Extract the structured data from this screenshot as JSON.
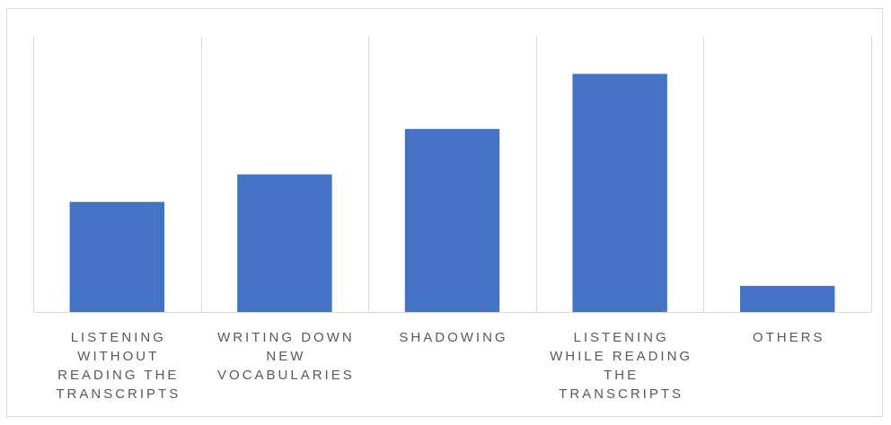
{
  "chart_data": {
    "type": "bar",
    "title": "",
    "xlabel": "",
    "ylabel": "",
    "categories": [
      "LISTENING WITHOUT READING THE TRANSCRIPTS",
      "WRITING DOWN NEW VOCABULARIES",
      "SHADOWING",
      "LISTENING WHILE READING THE TRANSCRIPTS",
      "OTHERS"
    ],
    "category_lines": [
      [
        "LISTENING",
        "WITHOUT",
        "READING THE",
        "TRANSCRIPTS"
      ],
      [
        "WRITING DOWN",
        "NEW",
        "VOCABULARIES"
      ],
      [
        "SHADOWING"
      ],
      [
        "LISTENING",
        "WHILE READING",
        "THE",
        "TRANSCRIPTS"
      ],
      [
        "OTHERS"
      ]
    ],
    "values": [
      40,
      50,
      66.5,
      86.5,
      9.5
    ],
    "ylim": [
      0,
      100
    ],
    "show_y_axis": false,
    "gridlines": "vertical category separators",
    "legend": "none",
    "bar_color": "#4472C4",
    "grid_color": "#d9d9d9",
    "label_color": "#595959"
  }
}
